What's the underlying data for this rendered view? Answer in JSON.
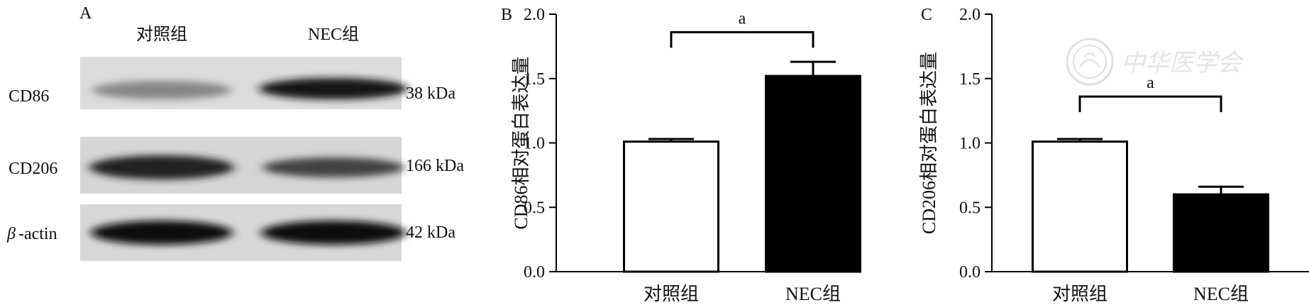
{
  "panel_a": {
    "letter": "A",
    "columns": [
      "对照组",
      "NEC组"
    ],
    "rows": [
      {
        "protein": "CD86",
        "mw": "38 kDa",
        "intensity": [
          0.45,
          0.95
        ]
      },
      {
        "protein": "CD206",
        "mw": "166 kDa",
        "intensity": [
          0.9,
          0.75
        ]
      },
      {
        "protein_symbol": "β",
        "protein": "-actin",
        "mw": "42 kDa",
        "intensity": [
          0.98,
          0.98
        ]
      }
    ]
  },
  "watermark": {
    "text": "中华医学会"
  },
  "chart_data": [
    {
      "panel": "B",
      "type": "bar",
      "categories": [
        "对照组",
        "NEC组"
      ],
      "values": [
        1.01,
        1.52
      ],
      "errors": [
        0.02,
        0.11
      ],
      "bar_fill": [
        "#ffffff",
        "#000000"
      ],
      "ylabel": "CD86相对蛋白表达量",
      "ylim": [
        0,
        2.0
      ],
      "yticks": [
        "0.0",
        "0.5",
        "1.0",
        "1.5",
        "2.0"
      ],
      "significance": {
        "label": "a",
        "bracket_y": 1.86
      }
    },
    {
      "panel": "C",
      "type": "bar",
      "categories": [
        "对照组",
        "NEC组"
      ],
      "values": [
        1.01,
        0.6
      ],
      "errors": [
        0.02,
        0.06
      ],
      "bar_fill": [
        "#ffffff",
        "#000000"
      ],
      "ylabel": "CD206相对蛋白表达量",
      "ylim": [
        0,
        2.0
      ],
      "yticks": [
        "0.0",
        "0.5",
        "1.0",
        "1.5",
        "2.0"
      ],
      "significance": {
        "label": "a",
        "bracket_y": 1.36
      }
    }
  ]
}
